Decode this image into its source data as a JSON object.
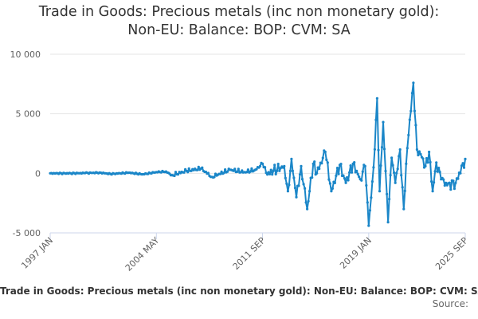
{
  "chart_data": {
    "type": "line",
    "title_lines": [
      "Trade in Goods: Precious metals (inc non monetary gold):",
      "Non-EU: Balance: BOP: CVM: SA"
    ],
    "title": "Trade in Goods: Precious metals (inc non monetary gold): Non-EU: Balance: BOP: CVM: SA",
    "xlabel": "",
    "ylabel": "",
    "x_start": "1997 JAN",
    "x_end": "2025 SEP",
    "x_tick_labels": [
      "1997 JAN",
      "2004 MAY",
      "2011 SEP",
      "2019 JAN",
      "2025 SEP"
    ],
    "y_ticks": [
      -5000,
      0,
      5000,
      10000
    ],
    "y_tick_labels": [
      "-5 000",
      "0",
      "5 000",
      "10 000"
    ],
    "ylim": [
      -5000,
      10000
    ],
    "grid": true,
    "legend_position": "bottom",
    "series_color": "#1a86c8",
    "series": [
      {
        "name": "Trade in Goods: Precious metals (inc non monetary gold): Non-EU: Balance: BOP: CVM: SA",
        "x_start": "1997 JAN",
        "frequency": "monthly",
        "anchors": [
          [
            "1997 JAN",
            0
          ],
          [
            "1998 JUN",
            0
          ],
          [
            "1999 JUN",
            20
          ],
          [
            "2000 JUN",
            60
          ],
          [
            "2001 MAR",
            -50
          ],
          [
            "2002 JUN",
            50
          ],
          [
            "2003 JUN",
            -80
          ],
          [
            "2004 MAY",
            100
          ],
          [
            "2005 JAN",
            150
          ],
          [
            "2005 JUN",
            -150
          ],
          [
            "2006 JUN",
            200
          ],
          [
            "2007 JUN",
            400
          ],
          [
            "2008 MAR",
            -300
          ],
          [
            "2009 JUN",
            300
          ],
          [
            "2010 JUN",
            100
          ],
          [
            "2011 MAR",
            300
          ],
          [
            "2011 SEP",
            800
          ],
          [
            "2012 JAN",
            -100
          ],
          [
            "2012 JUN",
            200
          ],
          [
            "2013 MAR",
            600
          ],
          [
            "2013 JUN",
            -1500
          ],
          [
            "2013 SEP",
            1200
          ],
          [
            "2014 JAN",
            -2000
          ],
          [
            "2014 MAY",
            600
          ],
          [
            "2014 OCT",
            -3000
          ],
          [
            "2015 MAR",
            800
          ],
          [
            "2015 JUN",
            0
          ],
          [
            "2016 JAN",
            1800
          ],
          [
            "2016 JUN",
            -1500
          ],
          [
            "2017 JAN",
            700
          ],
          [
            "2017 JUN",
            -800
          ],
          [
            "2017 DEC",
            800
          ],
          [
            "2018 JUN",
            -500
          ],
          [
            "2018 OCT",
            600
          ],
          [
            "2019 JAN",
            -4400
          ],
          [
            "2019 MAY",
            500
          ],
          [
            "2019 AUG",
            6300
          ],
          [
            "2019 OCT",
            -1500
          ],
          [
            "2020 JAN",
            4300
          ],
          [
            "2020 MAY",
            -4100
          ],
          [
            "2020 AUG",
            1300
          ],
          [
            "2020 NOV",
            -800
          ],
          [
            "2021 MAR",
            2000
          ],
          [
            "2021 JUN",
            -3000
          ],
          [
            "2021 AUG",
            800
          ],
          [
            "2021 NOV",
            4500
          ],
          [
            "2022 FEB",
            7600
          ],
          [
            "2022 MAY",
            2000
          ],
          [
            "2022 AUG",
            1600
          ],
          [
            "2022 DEC",
            600
          ],
          [
            "2023 MAR",
            1800
          ],
          [
            "2023 JUN",
            -1500
          ],
          [
            "2023 SEP",
            900
          ],
          [
            "2024 JAN",
            -500
          ],
          [
            "2024 JUN",
            -1000
          ],
          [
            "2025 JAN",
            -800
          ],
          [
            "2025 SEP",
            1200
          ]
        ]
      }
    ]
  },
  "credits": "Source:"
}
